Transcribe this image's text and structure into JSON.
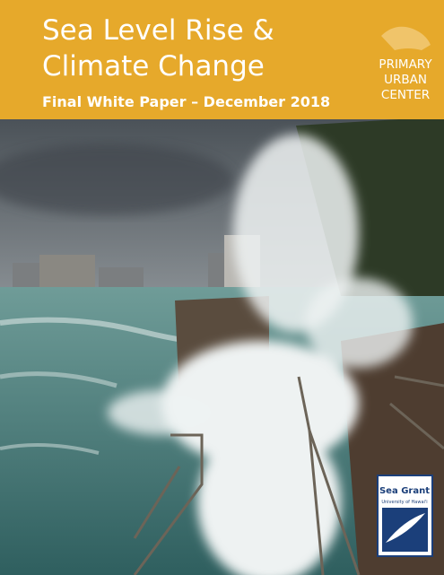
{
  "header": {
    "title_lines": [
      "Sea Level Rise &",
      "Climate Change"
    ],
    "subtitle": "Final White Paper – December 2018"
  },
  "logo": {
    "lines": [
      "PRIMARY",
      "URBAN",
      "CENTER"
    ]
  },
  "sea_grant": {
    "name": "Sea Grant",
    "university": "University of Hawai'i"
  }
}
